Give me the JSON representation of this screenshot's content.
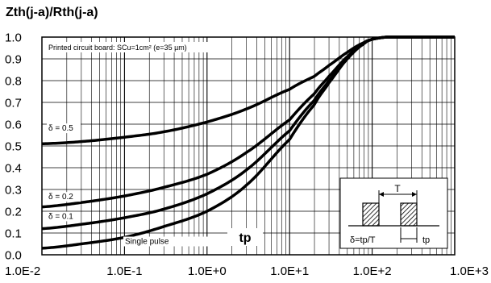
{
  "chart_data": {
    "type": "line",
    "title": "Zth(j-a)/Rth(j-a)",
    "xlabel": "tp",
    "ylabel": "",
    "x_scale": "log",
    "xlim": [
      0.01,
      1000
    ],
    "ylim": [
      0.0,
      1.0
    ],
    "grid": true,
    "x_ticks": [
      "1.0E-2",
      "1.0E-1",
      "1.0E+0",
      "1.0E+1",
      "1.0E+2",
      "1.0E+3"
    ],
    "x_tick_values": [
      0.01,
      0.1,
      1,
      10,
      100,
      1000
    ],
    "y_ticks": [
      "0.0",
      "0.1",
      "0.2",
      "0.3",
      "0.4",
      "0.5",
      "0.6",
      "0.7",
      "0.8",
      "0.9",
      "1.0"
    ],
    "y_tick_values": [
      0.0,
      0.1,
      0.2,
      0.3,
      0.4,
      0.5,
      0.6,
      0.7,
      0.8,
      0.9,
      1.0
    ],
    "annotations": {
      "pcb": "Printed circuit board: SCu=1cm² (e=35 µm)"
    },
    "series": [
      {
        "name": "δ = 0.5",
        "x": [
          0.01,
          0.03,
          0.1,
          0.3,
          1,
          3,
          10,
          20,
          30,
          50,
          80,
          100,
          150,
          200,
          500,
          1000
        ],
        "y": [
          0.51,
          0.52,
          0.54,
          0.565,
          0.61,
          0.67,
          0.76,
          0.82,
          0.87,
          0.93,
          0.975,
          0.99,
          1.0,
          1.0,
          1.0,
          1.0
        ]
      },
      {
        "name": "δ = 0.2",
        "x": [
          0.01,
          0.03,
          0.1,
          0.3,
          1,
          3,
          10,
          20,
          30,
          50,
          80,
          100,
          150,
          200,
          500,
          1000
        ],
        "y": [
          0.22,
          0.24,
          0.27,
          0.31,
          0.37,
          0.47,
          0.62,
          0.74,
          0.82,
          0.91,
          0.97,
          0.99,
          1.0,
          1.0,
          1.0,
          1.0
        ]
      },
      {
        "name": "δ = 0.1",
        "x": [
          0.01,
          0.03,
          0.1,
          0.3,
          1,
          3,
          10,
          20,
          30,
          50,
          80,
          100,
          150,
          200,
          500,
          1000
        ],
        "y": [
          0.12,
          0.14,
          0.17,
          0.21,
          0.28,
          0.39,
          0.57,
          0.71,
          0.8,
          0.9,
          0.97,
          0.99,
          1.0,
          1.0,
          1.0,
          1.0
        ]
      },
      {
        "name": "Single pulse",
        "x": [
          0.01,
          0.03,
          0.1,
          0.3,
          1,
          3,
          10,
          20,
          30,
          50,
          80,
          100,
          150,
          200,
          500,
          1000
        ],
        "y": [
          0.03,
          0.05,
          0.08,
          0.13,
          0.2,
          0.32,
          0.53,
          0.69,
          0.79,
          0.9,
          0.97,
          0.99,
          1.0,
          1.0,
          1.0,
          1.0
        ]
      }
    ],
    "inset": {
      "t_label": "T",
      "duty_label": "δ=tp/T",
      "tp_label": "tp"
    }
  }
}
